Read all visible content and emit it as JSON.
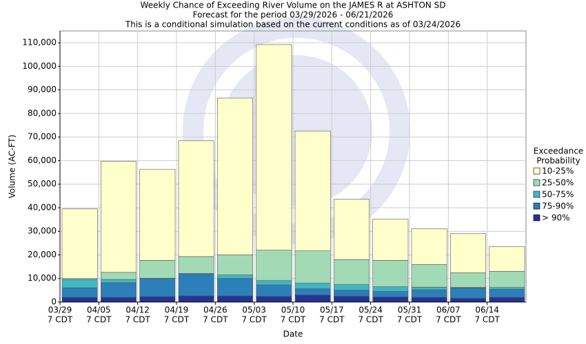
{
  "chart_data": {
    "type": "stacked_bar",
    "title": [
      "Weekly Chance of Exceeding River Volume on the JAMES R at ASHTON SD",
      "Forecast for the period 03/29/2026 - 06/21/2026",
      "This is a conditional simulation based on the current conditions as of 03/24/2026"
    ],
    "x_label": "Date",
    "y_label": "Volume (AC-FT)",
    "categories": [
      "03/29",
      "04/05",
      "04/12",
      "04/19",
      "04/26",
      "05/03",
      "05/10",
      "05/17",
      "05/24",
      "05/31",
      "06/07",
      "06/14"
    ],
    "category_sublabel": "7 CDT",
    "legend_title": [
      "Exceedance",
      "Probability"
    ],
    "legend_position": "right",
    "grid": true,
    "ylim": [
      0,
      115000
    ],
    "yticks": [
      0,
      {
        "value": 10000,
        "label": "10,000"
      },
      {
        "value": 20000,
        "label": "20,000"
      },
      {
        "value": 30000,
        "label": "30,000"
      },
      {
        "value": 40000,
        "label": "40,000"
      },
      {
        "value": 50000,
        "label": "50,000"
      },
      {
        "value": 60000,
        "label": "60,000"
      },
      {
        "value": 70000,
        "label": "70,000"
      },
      {
        "value": 80000,
        "label": "80,000"
      },
      {
        "value": 90000,
        "label": "90,000"
      },
      {
        "value": 100000,
        "label": "100,000"
      },
      {
        "value": 110000,
        "label": "110,000"
      }
    ],
    "series": [
      {
        "name": "> 90%",
        "color": "#253494",
        "values": [
          2000,
          2000,
          2300,
          2600,
          2600,
          2400,
          3000,
          2500,
          2200,
          2000,
          1600,
          2000
        ]
      },
      {
        "name": "75-90%",
        "color": "#2c7fb8",
        "values": [
          4000,
          6200,
          7700,
          9400,
          7400,
          4900,
          2600,
          2500,
          2300,
          3200,
          4400,
          3400
        ]
      },
      {
        "name": "50-75%",
        "color": "#41b6c4",
        "values": [
          3600,
          1400,
          100,
          100,
          1500,
          1800,
          2400,
          2400,
          2000,
          1100,
          200,
          800
        ]
      },
      {
        "name": "25-50%",
        "color": "#a1dab4",
        "values": [
          400,
          3000,
          7600,
          7200,
          8500,
          12900,
          13700,
          10600,
          11200,
          9600,
          6200,
          6800
        ]
      },
      {
        "name": "10-25%",
        "color": "#ffffcc",
        "values": [
          29500,
          47100,
          38600,
          49100,
          66600,
          87200,
          50800,
          25600,
          17500,
          15200,
          16600,
          10500
        ]
      }
    ]
  }
}
